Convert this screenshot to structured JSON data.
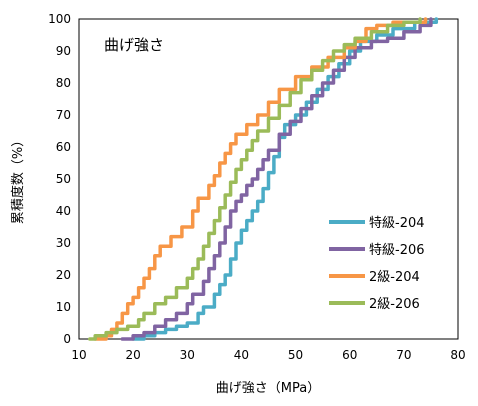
{
  "chart_data": {
    "type": "line",
    "title": "曲げ強さ",
    "xlabel": "曲げ強さ（MPa）",
    "ylabel": "累積度数（%）",
    "xlim": [
      10,
      80
    ],
    "ylim": [
      0,
      100
    ],
    "xticks": [
      10,
      20,
      30,
      40,
      50,
      60,
      70,
      80
    ],
    "yticks": [
      0,
      10,
      20,
      30,
      40,
      50,
      60,
      70,
      80,
      90,
      100
    ],
    "grid": false,
    "legend_position": "right",
    "series": [
      {
        "name": "特級-204",
        "color": "#4bacc6",
        "points": [
          [
            20,
            0
          ],
          [
            22,
            1
          ],
          [
            24,
            2
          ],
          [
            26,
            3
          ],
          [
            28,
            4
          ],
          [
            30,
            5
          ],
          [
            32,
            8
          ],
          [
            33,
            10
          ],
          [
            35,
            14
          ],
          [
            36,
            17
          ],
          [
            37,
            20
          ],
          [
            38,
            25
          ],
          [
            39,
            30
          ],
          [
            40,
            34
          ],
          [
            41,
            37
          ],
          [
            42,
            40
          ],
          [
            43,
            43
          ],
          [
            44,
            47
          ],
          [
            45,
            52
          ],
          [
            46,
            57
          ],
          [
            47,
            63
          ],
          [
            48,
            67
          ],
          [
            50,
            70
          ],
          [
            52,
            74
          ],
          [
            54,
            78
          ],
          [
            56,
            82
          ],
          [
            58,
            86
          ],
          [
            60,
            90
          ],
          [
            62,
            93
          ],
          [
            65,
            95
          ],
          [
            68,
            97
          ],
          [
            72,
            99
          ],
          [
            76,
            100
          ]
        ]
      },
      {
        "name": "特級-206",
        "color": "#8064a2",
        "points": [
          [
            18,
            0
          ],
          [
            20,
            1
          ],
          [
            22,
            2
          ],
          [
            24,
            4
          ],
          [
            26,
            6
          ],
          [
            28,
            8
          ],
          [
            30,
            11
          ],
          [
            31,
            14
          ],
          [
            33,
            18
          ],
          [
            34,
            22
          ],
          [
            35,
            26
          ],
          [
            36,
            30
          ],
          [
            37,
            35
          ],
          [
            38,
            40
          ],
          [
            39,
            43
          ],
          [
            40,
            45
          ],
          [
            41,
            48
          ],
          [
            42,
            50
          ],
          [
            43,
            53
          ],
          [
            44,
            56
          ],
          [
            45,
            59
          ],
          [
            47,
            64
          ],
          [
            49,
            68
          ],
          [
            51,
            72
          ],
          [
            53,
            76
          ],
          [
            55,
            80
          ],
          [
            57,
            84
          ],
          [
            59,
            88
          ],
          [
            61,
            91
          ],
          [
            64,
            93
          ],
          [
            67,
            94
          ],
          [
            70,
            96
          ],
          [
            73,
            98
          ],
          [
            75,
            100
          ]
        ]
      },
      {
        "name": "2級-204",
        "color": "#f79646",
        "points": [
          [
            13,
            0
          ],
          [
            15,
            1
          ],
          [
            16,
            3
          ],
          [
            17,
            5
          ],
          [
            18,
            8
          ],
          [
            19,
            11
          ],
          [
            20,
            13
          ],
          [
            21,
            16
          ],
          [
            22,
            19
          ],
          [
            23,
            22
          ],
          [
            24,
            26
          ],
          [
            25,
            29
          ],
          [
            27,
            32
          ],
          [
            29,
            35
          ],
          [
            31,
            40
          ],
          [
            32,
            44
          ],
          [
            34,
            48
          ],
          [
            35,
            51
          ],
          [
            36,
            55
          ],
          [
            37,
            58
          ],
          [
            38,
            61
          ],
          [
            39,
            64
          ],
          [
            41,
            67
          ],
          [
            43,
            70
          ],
          [
            45,
            74
          ],
          [
            47,
            78
          ],
          [
            50,
            82
          ],
          [
            53,
            85
          ],
          [
            56,
            88
          ],
          [
            59,
            91
          ],
          [
            61,
            93
          ],
          [
            63,
            97
          ],
          [
            65,
            98
          ],
          [
            68,
            99
          ],
          [
            74,
            100
          ]
        ]
      },
      {
        "name": "2級-206",
        "color": "#9bbb59",
        "points": [
          [
            12,
            0
          ],
          [
            13,
            1
          ],
          [
            15,
            2
          ],
          [
            17,
            3
          ],
          [
            19,
            4
          ],
          [
            21,
            6
          ],
          [
            22,
            8
          ],
          [
            24,
            11
          ],
          [
            26,
            13
          ],
          [
            28,
            16
          ],
          [
            30,
            19
          ],
          [
            31,
            22
          ],
          [
            32,
            25
          ],
          [
            33,
            29
          ],
          [
            34,
            33
          ],
          [
            35,
            37
          ],
          [
            36,
            41
          ],
          [
            37,
            45
          ],
          [
            38,
            49
          ],
          [
            39,
            53
          ],
          [
            40,
            56
          ],
          [
            41,
            59
          ],
          [
            42,
            62
          ],
          [
            43,
            65
          ],
          [
            45,
            69
          ],
          [
            47,
            73
          ],
          [
            49,
            77
          ],
          [
            51,
            81
          ],
          [
            53,
            84
          ],
          [
            55,
            87
          ],
          [
            57,
            90
          ],
          [
            59,
            92
          ],
          [
            61,
            94
          ],
          [
            64,
            96
          ],
          [
            67,
            98
          ],
          [
            70,
            99
          ],
          [
            73,
            100
          ]
        ]
      }
    ]
  }
}
